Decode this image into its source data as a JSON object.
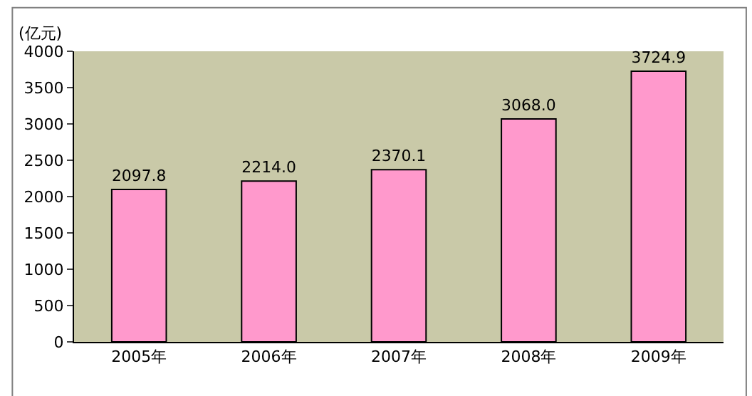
{
  "chart_data": {
    "type": "bar",
    "ylabel": "(亿元)",
    "categories": [
      "2005年",
      "2006年",
      "2007年",
      "2008年",
      "2009年"
    ],
    "values": [
      2097.8,
      2214.0,
      2370.1,
      3068.0,
      3724.9
    ],
    "value_labels": [
      "2097.8",
      "2214.0",
      "2370.1",
      "3068.0",
      "3724.9"
    ],
    "color": "#ff99cc",
    "ylim": [
      0,
      4000
    ],
    "yticks": [
      0,
      500,
      1000,
      1500,
      2000,
      2500,
      3000,
      3500,
      4000
    ],
    "grid": false,
    "legend": false
  }
}
